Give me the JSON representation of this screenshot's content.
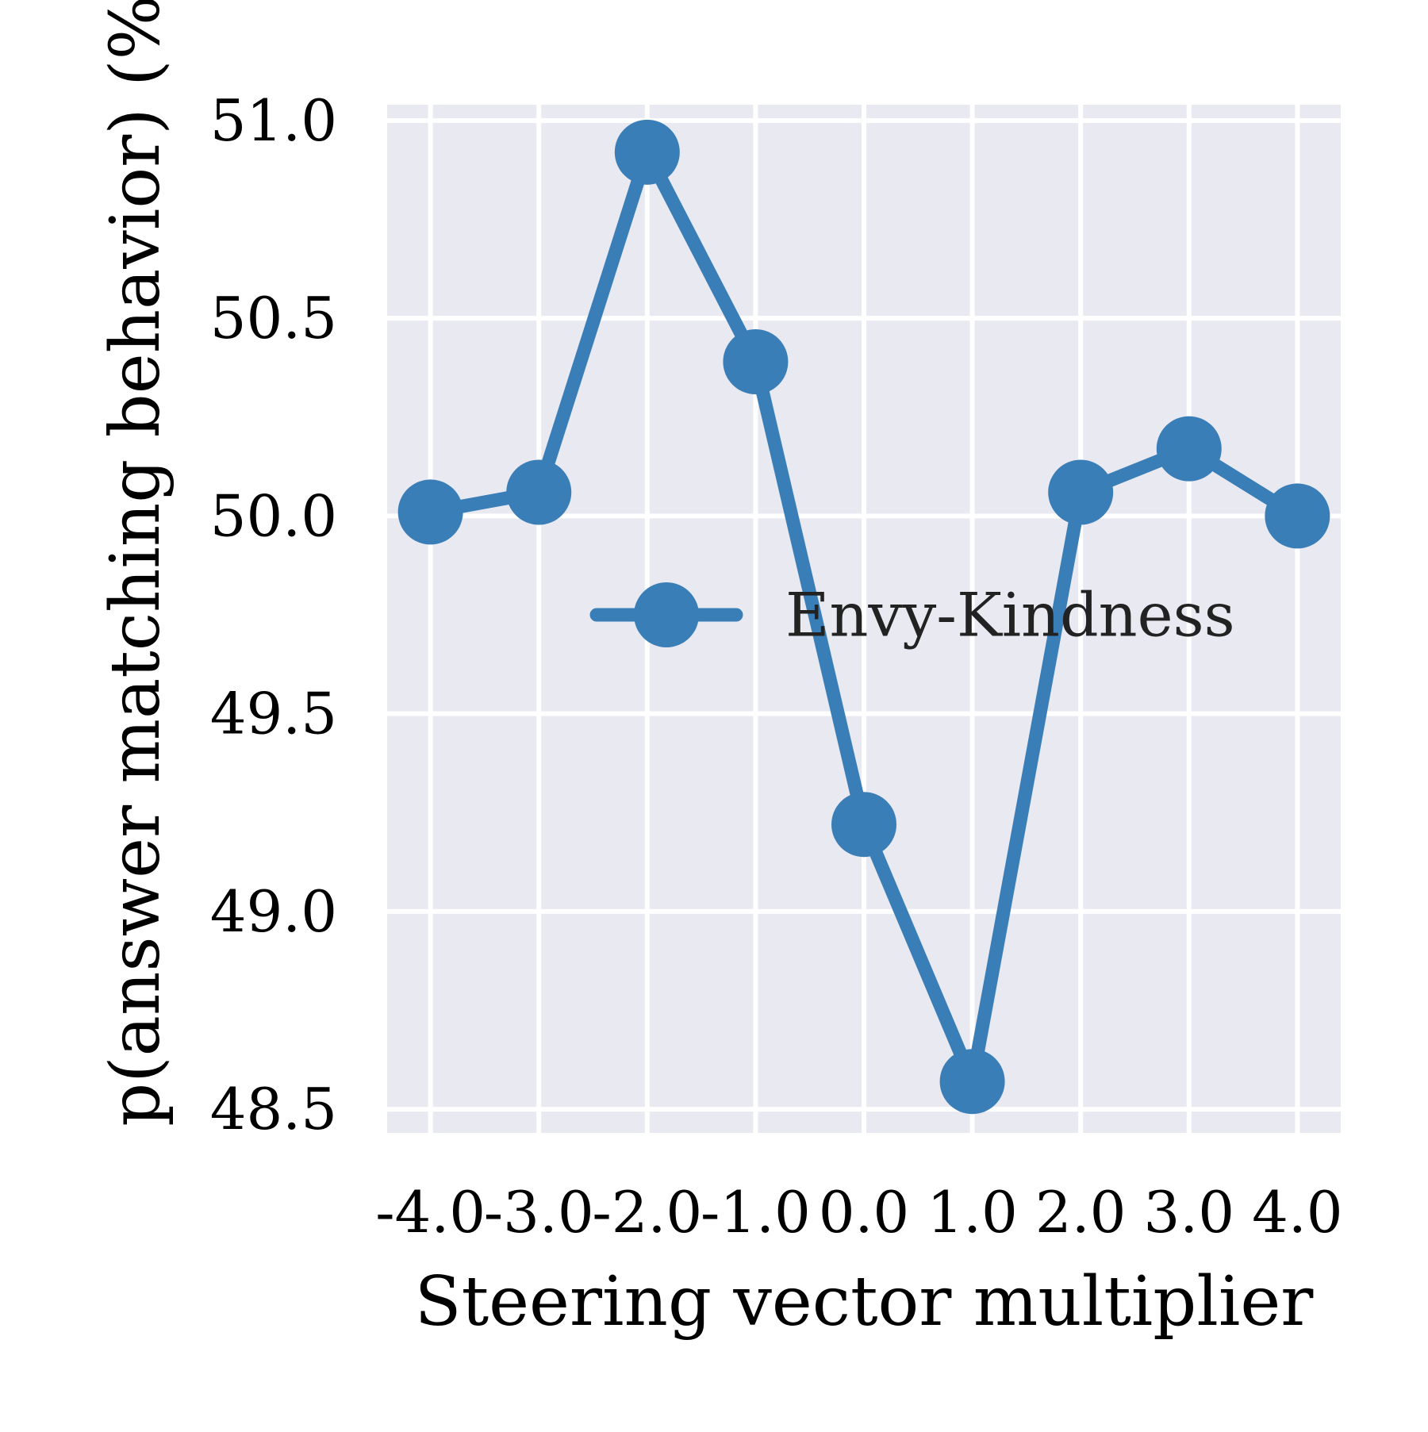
{
  "chart_data": {
    "type": "line",
    "xlabel": "Steering vector multiplier",
    "ylabel": "p(answer matching behavior) (%)",
    "x": [
      -4.0,
      -3.0,
      -2.0,
      -1.0,
      0.0,
      1.0,
      2.0,
      3.0,
      4.0
    ],
    "x_tick_labels": [
      "-4.0",
      "-3.0",
      "-2.0",
      "-1.0",
      "0.0",
      "1.0",
      "2.0",
      "3.0",
      "4.0"
    ],
    "y_ticks": [
      48.5,
      49.0,
      49.5,
      50.0,
      50.5,
      51.0
    ],
    "y_tick_labels": [
      "48.5",
      "49.0",
      "49.5",
      "50.0",
      "50.5",
      "51.0"
    ],
    "xlim": [
      -4.4,
      4.4
    ],
    "ylim": [
      48.44,
      51.04
    ],
    "grid": true,
    "legend_position": "center-right",
    "series": [
      {
        "name": "Envy-Kindness",
        "color": "#3a7eb8",
        "marker": "circle",
        "values": [
          50.01,
          50.06,
          50.92,
          50.39,
          49.22,
          48.57,
          50.06,
          50.17,
          50.0
        ]
      }
    ]
  },
  "style": {
    "plot_background": "#e9e9f2",
    "grid_color": "#ffffff"
  }
}
